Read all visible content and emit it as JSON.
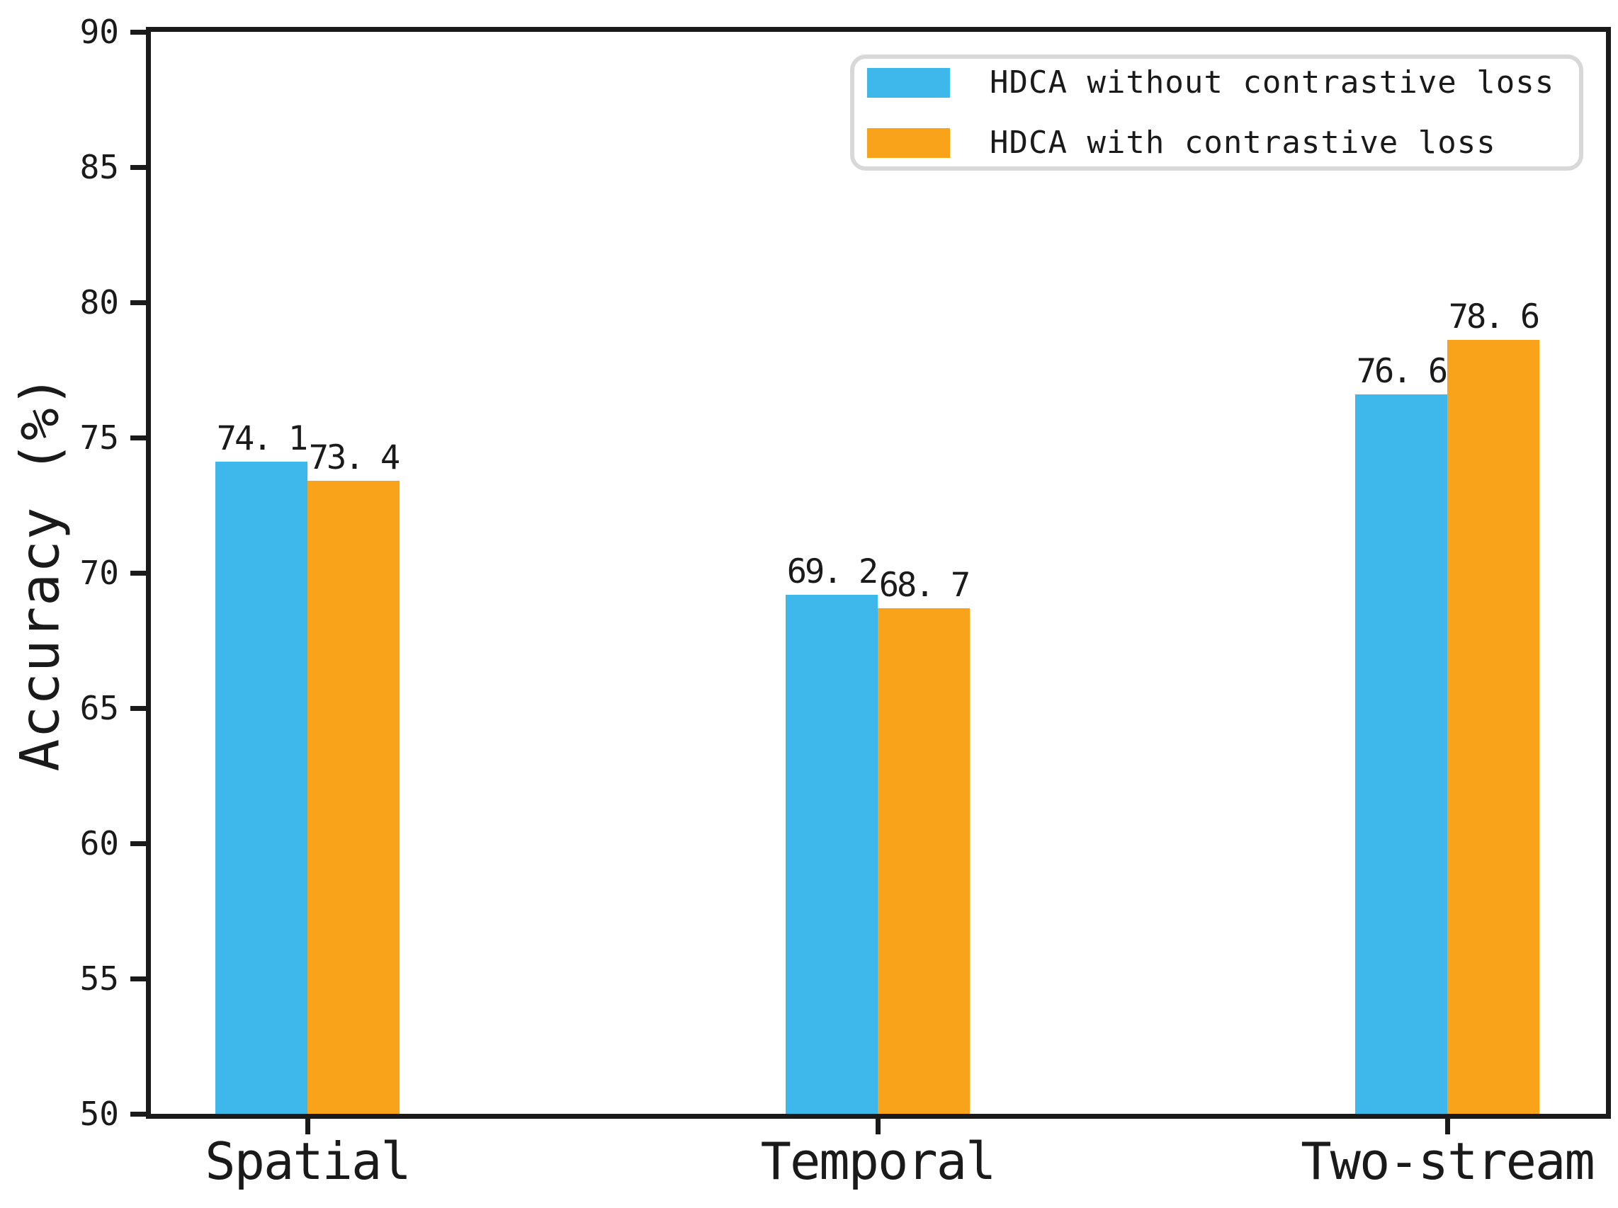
{
  "chart_data": {
    "type": "bar",
    "title": "",
    "xlabel": "",
    "ylabel": "Accuracy (%)",
    "categories": [
      "Spatial",
      "Temporal",
      "Two-stream"
    ],
    "series": [
      {
        "name": "HDCA without contrastive loss",
        "color": "#3EB7EA",
        "values": [
          74.1,
          69.2,
          76.6
        ],
        "labels": [
          "74. 1",
          "69. 2",
          "76. 6"
        ]
      },
      {
        "name": "HDCA with contrastive loss",
        "color": "#F9A31B",
        "values": [
          73.4,
          68.7,
          78.6
        ],
        "labels": [
          "73. 4",
          "68. 7",
          "78. 6"
        ]
      }
    ],
    "ylim": [
      50,
      90
    ],
    "yticks": [
      50,
      55,
      60,
      65,
      70,
      75,
      80,
      85,
      90
    ],
    "grid": false,
    "legend_position": "upper right",
    "frame": true,
    "colors": {
      "axis": "#1a1a1a",
      "legend_border": "#d8d8d8",
      "background": "#ffffff"
    }
  }
}
